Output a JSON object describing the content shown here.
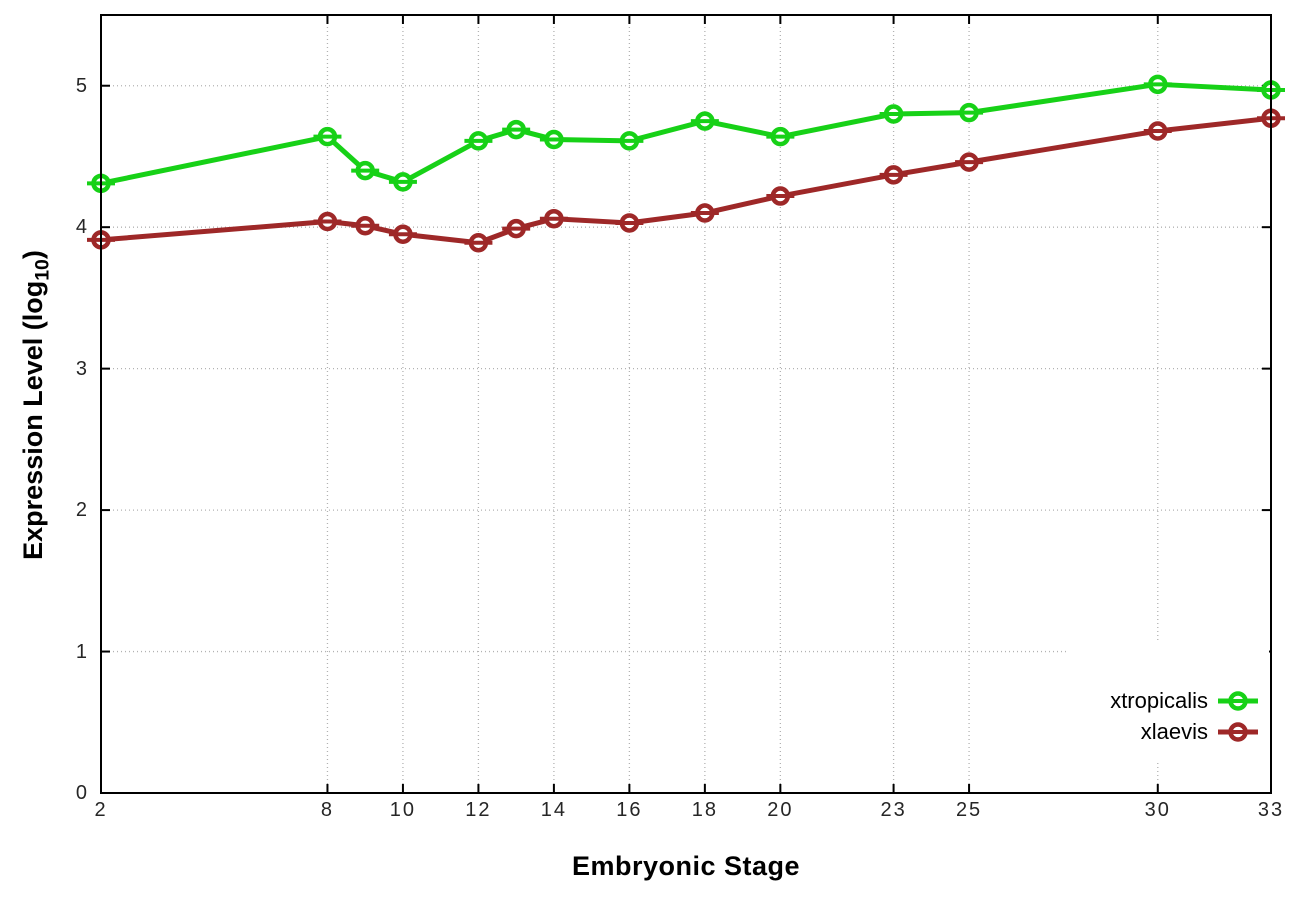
{
  "chart_data": {
    "type": "line",
    "title": "",
    "xlabel": "Embryonic Stage",
    "ylabel_prefix": "Expression Level (log",
    "ylabel_sub": "10",
    "ylabel_suffix": ")",
    "xlim": [
      2,
      33
    ],
    "ylim": [
      0,
      5.5
    ],
    "grid": true,
    "grid_style": "dotted",
    "legend_position": "inside bottom right",
    "x": [
      2,
      8,
      9,
      10,
      12,
      13,
      14,
      16,
      18,
      20,
      23,
      25,
      30,
      33
    ],
    "xticks": [
      {
        "label": "2",
        "value": 2
      },
      {
        "label": "8",
        "value": 8
      },
      {
        "label": "10",
        "value": 10
      },
      {
        "label": "12",
        "value": 12
      },
      {
        "label": "14",
        "value": 14
      },
      {
        "label": "16",
        "value": 16
      },
      {
        "label": "18",
        "value": 18
      },
      {
        "label": "20",
        "value": 20
      },
      {
        "label": "23",
        "value": 23
      },
      {
        "label": "25",
        "value": 25
      },
      {
        "label": "30",
        "value": 30
      },
      {
        "label": "33",
        "value": 33
      }
    ],
    "yticks": [
      {
        "label": "0",
        "value": 0
      },
      {
        "label": "1",
        "value": 1
      },
      {
        "label": "2",
        "value": 2
      },
      {
        "label": "3",
        "value": 3
      },
      {
        "label": "4",
        "value": 4
      },
      {
        "label": "5",
        "value": 5
      }
    ],
    "series": [
      {
        "name": "xtropicalis",
        "color": "#17d117",
        "marker": "open-circle-with-errorbar",
        "values": [
          4.31,
          4.64,
          4.4,
          4.32,
          4.61,
          4.69,
          4.62,
          4.61,
          4.75,
          4.64,
          4.8,
          4.81,
          5.01,
          4.97
        ]
      },
      {
        "name": "xlaevis",
        "color": "#9e2828",
        "marker": "open-circle-with-errorbar",
        "values": [
          3.91,
          4.04,
          4.01,
          3.95,
          3.89,
          3.99,
          4.06,
          4.03,
          4.1,
          4.22,
          4.37,
          4.46,
          4.68,
          4.77
        ]
      }
    ]
  },
  "colors": {
    "background": "#ffffff",
    "grid": "#b2b2b2",
    "axis": "#000000",
    "tick_text": "#262626"
  }
}
